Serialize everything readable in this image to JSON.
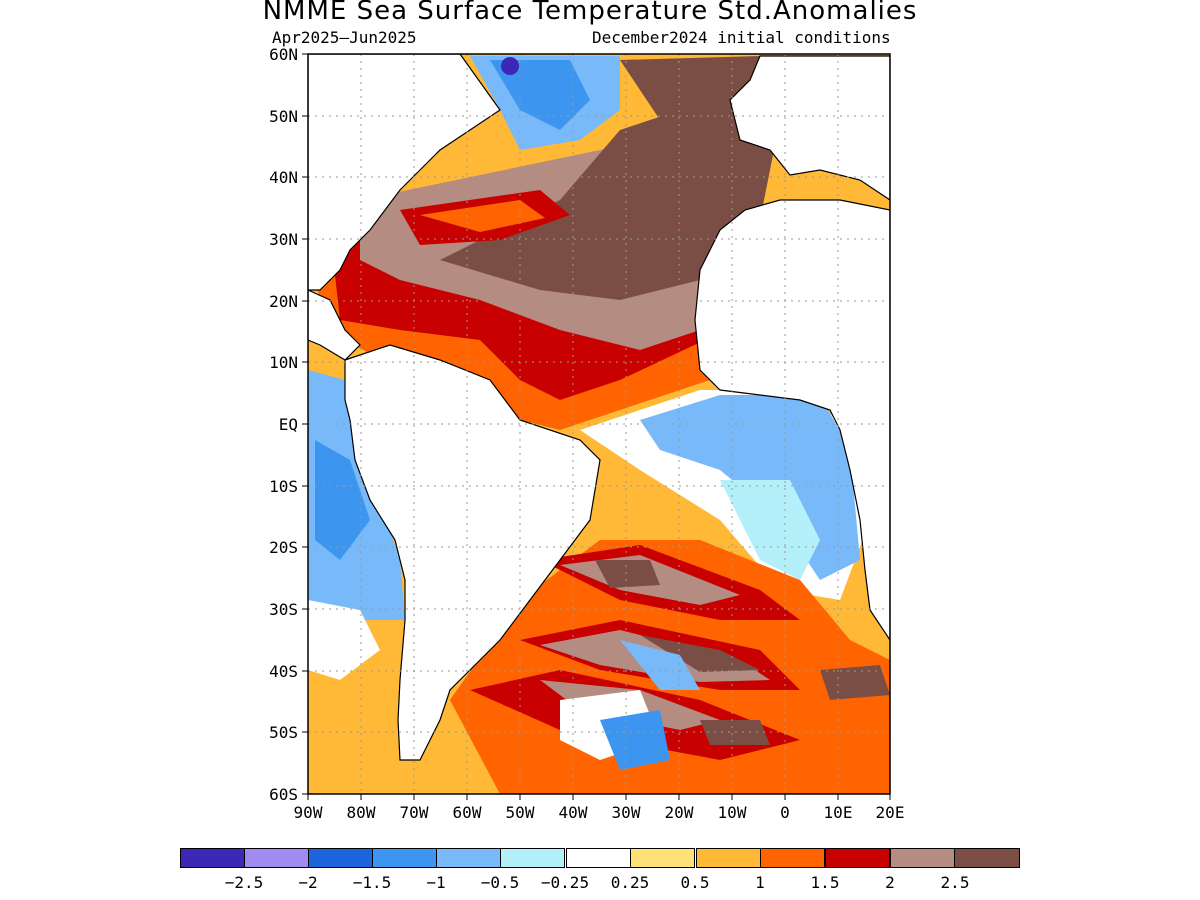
{
  "title": "NMME Sea Surface Temperature Std.Anomalies",
  "subtitle_left": "Apr2025–Jun2025",
  "subtitle_right": "December2024 initial conditions",
  "lat_labels": [
    "60N",
    "50N",
    "40N",
    "30N",
    "20N",
    "10N",
    "EQ",
    "10S",
    "20S",
    "30S",
    "40S",
    "50S",
    "60S"
  ],
  "lon_labels": [
    "90W",
    "80W",
    "70W",
    "60W",
    "50W",
    "40W",
    "30W",
    "20W",
    "10W",
    "0",
    "10E",
    "20E"
  ],
  "colorbar": {
    "colors": [
      "#3c28b4",
      "#a08cf0",
      "#1e64dc",
      "#3c96f0",
      "#78b9fa",
      "#b4f0fa",
      "#ffffff",
      "#ffe178",
      "#ffb937",
      "#ff6400",
      "#c80000",
      "#b48c82",
      "#7a4e44"
    ],
    "labels": [
      "−2.5",
      "−2",
      "−1.5",
      "−1",
      "−0.5",
      "−0.25",
      "0.25",
      "0.5",
      "1",
      "1.5",
      "2",
      "2.5"
    ]
  }
}
